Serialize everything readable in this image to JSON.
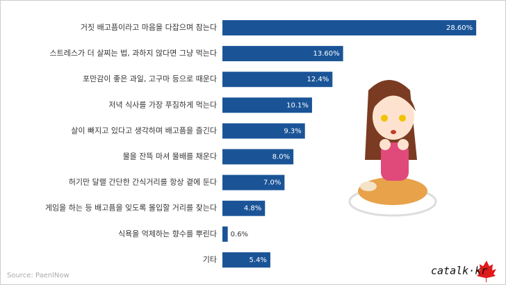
{
  "chart_data": {
    "type": "bar",
    "orientation": "horizontal",
    "categories": [
      "거짓 배고픔이라고 마음을 다잡으며 참는다",
      "스트레스가 더 살찌는 법, 과하지 않다면 그냥 먹는다",
      "포만감이 좋은 과일, 고구마 등으로 때운다",
      "저녁 식사를 가장 푸짐하게 먹는다",
      "살이 빠지고 있다고 생각하며 배고픔을 즐긴다",
      "물을 잔뜩 마셔 물배를 채운다",
      "허기만 달랠 간단한 간식거리를 항상 곁에 둔다",
      "게임을 하는 등 배고픔을 잊도록 몰입할 거리를 찾는다",
      "식욕을 억제하는 향수를 뿌린다",
      "기타"
    ],
    "values": [
      28.6,
      13.6,
      12.4,
      10.1,
      9.3,
      8.0,
      7.0,
      4.8,
      0.6,
      5.4
    ],
    "value_labels": [
      "28.60%",
      "13.60%",
      "12.4%",
      "10.1%",
      "9.3%",
      "8.0%",
      "7.0%",
      "4.8%",
      "0.6%",
      "5.4%"
    ],
    "color": "#1a5497",
    "xlim": [
      0,
      30
    ],
    "source": "Source: PaenlNow",
    "logo": "catalk·kr"
  }
}
